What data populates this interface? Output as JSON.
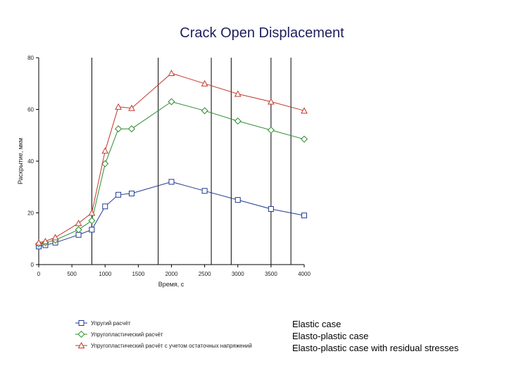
{
  "chart_data": {
    "type": "line",
    "title": "Crack Open Displacement",
    "xlabel": "Время, с",
    "ylabel": "Раскрытие, мкм",
    "xlim": [
      0,
      4000
    ],
    "ylim": [
      0,
      80
    ],
    "xticks": [
      0,
      500,
      1000,
      1500,
      2000,
      2500,
      3000,
      3500,
      4000
    ],
    "yticks": [
      0,
      20,
      40,
      60,
      80
    ],
    "vertical_lines": [
      800,
      1800,
      2600,
      2900,
      3500,
      3800
    ],
    "series": [
      {
        "name": "Упругий расчёт",
        "color": "#1f3a93",
        "marker": "square",
        "x": [
          0,
          100,
          250,
          600,
          800,
          1000,
          1200,
          1400,
          2000,
          2500,
          3000,
          3500,
          4000
        ],
        "y": [
          7,
          7.5,
          8.5,
          11.5,
          13.5,
          22.5,
          27,
          27.5,
          32,
          28.5,
          25,
          21.5,
          19
        ]
      },
      {
        "name": "Упругопластический расчёт",
        "color": "#2e8b2e",
        "marker": "diamond",
        "x": [
          0,
          100,
          250,
          600,
          800,
          1000,
          1200,
          1400,
          2000,
          2500,
          3000,
          3500,
          4000
        ],
        "y": [
          8,
          8.5,
          9.5,
          13.5,
          17,
          39,
          52.5,
          52.5,
          63,
          59.5,
          55.5,
          52,
          48.5
        ]
      },
      {
        "name": "Упругопластический расчёт с учетом остаточных напряжений",
        "color": "#c0392b",
        "marker": "triangle",
        "x": [
          0,
          100,
          250,
          600,
          800,
          1000,
          1200,
          1400,
          2000,
          2500,
          3000,
          3500,
          4000
        ],
        "y": [
          8.5,
          9,
          10.5,
          16,
          20,
          44,
          61,
          60.5,
          74,
          70,
          66,
          63,
          59.5
        ]
      }
    ],
    "legend_position": "bottom",
    "grid": false
  },
  "translations": [
    "Elastic case",
    "Elasto-plastic case",
    "Elasto-plastic case with residual stresses"
  ]
}
